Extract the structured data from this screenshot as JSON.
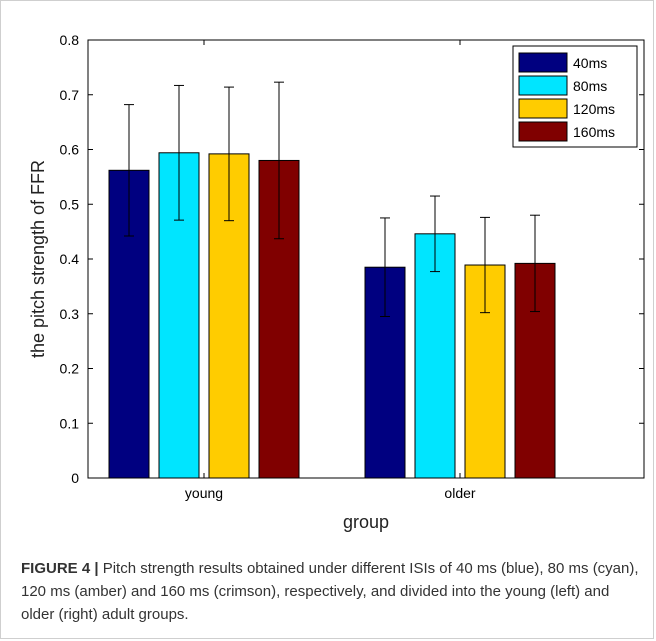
{
  "chart_data": {
    "type": "bar",
    "xlabel": "group",
    "ylabel": "the pitch strength of FFR",
    "ylim": [
      0,
      0.8
    ],
    "yticks": [
      "0",
      "0.1",
      "0.2",
      "0.3",
      "0.4",
      "0.5",
      "0.6",
      "0.7",
      "0.8"
    ],
    "categories": [
      "young",
      "older"
    ],
    "legend_position": "top-right",
    "grid": false,
    "series": [
      {
        "name": "40ms",
        "color": "#000080",
        "values": [
          0.562,
          0.385
        ],
        "errors": [
          0.12,
          0.09
        ]
      },
      {
        "name": "80ms",
        "color": "#00e5ff",
        "values": [
          0.594,
          0.446
        ],
        "errors": [
          0.123,
          0.069
        ]
      },
      {
        "name": "120ms",
        "color": "#ffcc00",
        "values": [
          0.592,
          0.389
        ],
        "errors": [
          0.122,
          0.087
        ]
      },
      {
        "name": "160ms",
        "color": "#800000",
        "values": [
          0.58,
          0.392
        ],
        "errors": [
          0.143,
          0.088
        ]
      }
    ]
  },
  "caption": {
    "label": "FIGURE 4 |",
    "text": " Pitch strength results obtained under different ISIs of 40 ms (blue), 80 ms (cyan), 120 ms (amber) and 160 ms (crimson), respectively, and divided into the young (left) and older (right) adult groups."
  }
}
